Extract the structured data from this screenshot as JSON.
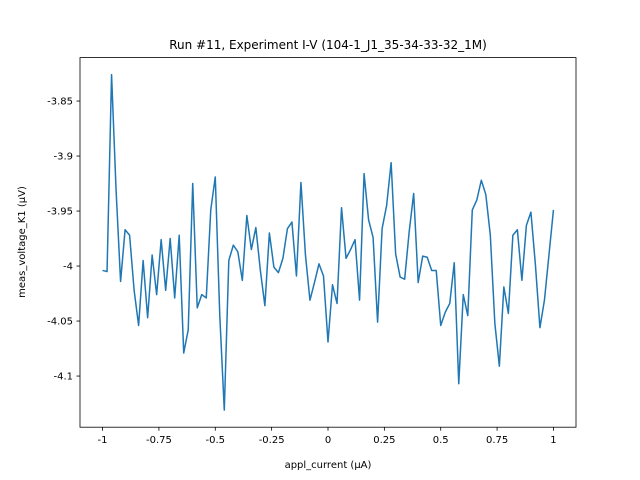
{
  "chart_data": {
    "type": "line",
    "title": "Run #11, Experiment I-V (104-1_J1_35-34-33-32_1M)",
    "x_label": "appl_current (µA)",
    "y_label": "meas_voltage_K1 (µV)",
    "x": [
      -1,
      -0.98,
      -0.96,
      -0.94,
      -0.92,
      -0.9,
      -0.88,
      -0.86,
      -0.84,
      -0.82,
      -0.8,
      -0.78,
      -0.76,
      -0.74,
      -0.72,
      -0.7,
      -0.68,
      -0.66,
      -0.64,
      -0.62,
      -0.6,
      -0.58,
      -0.56,
      -0.54,
      -0.52,
      -0.5,
      -0.48,
      -0.46,
      -0.44,
      -0.42,
      -0.4,
      -0.38,
      -0.36,
      -0.34,
      -0.32,
      -0.3,
      -0.28,
      -0.26,
      -0.24,
      -0.22,
      -0.2,
      -0.18,
      -0.16,
      -0.14,
      -0.12,
      -0.1,
      -0.08,
      -0.06,
      -0.04,
      -0.02,
      0,
      0.02,
      0.04,
      0.06,
      0.08,
      0.1,
      0.12,
      0.14,
      0.16,
      0.18,
      0.2,
      0.22,
      0.24,
      0.26,
      0.28,
      0.3,
      0.32,
      0.34,
      0.36,
      0.38,
      0.4,
      0.42,
      0.44,
      0.46,
      0.48,
      0.5,
      0.52,
      0.54,
      0.56,
      0.58,
      0.6,
      0.62,
      0.64,
      0.66,
      0.68,
      0.7,
      0.72,
      0.74,
      0.76,
      0.78,
      0.8,
      0.82,
      0.84,
      0.86,
      0.88,
      0.9,
      0.92,
      0.94,
      0.96,
      0.98,
      1
    ],
    "series": [
      {
        "name": "meas_voltage_K1",
        "color": "#1f77b4",
        "values": [
          -4.004,
          -4.005,
          -3.826,
          -3.931,
          -4.014,
          -3.967,
          -3.972,
          -4.022,
          -4.054,
          -3.995,
          -4.047,
          -3.99,
          -4.026,
          -3.976,
          -4.022,
          -3.975,
          -4.029,
          -3.972,
          -4.079,
          -4.058,
          -3.925,
          -4.038,
          -4.026,
          -4.029,
          -3.949,
          -3.919,
          -4.045,
          -4.131,
          -3.995,
          -3.981,
          -3.987,
          -4.013,
          -3.954,
          -3.985,
          -3.965,
          -4.004,
          -4.036,
          -3.97,
          -4.001,
          -4.006,
          -3.993,
          -3.966,
          -3.96,
          -4.009,
          -3.924,
          -3.99,
          -4.031,
          -4.015,
          -3.998,
          -4.009,
          -4.069,
          -4.017,
          -4.034,
          -3.947,
          -3.993,
          -3.985,
          -3.976,
          -4.031,
          -3.916,
          -3.958,
          -3.974,
          -4.051,
          -3.966,
          -3.945,
          -3.906,
          -3.989,
          -4.01,
          -4.012,
          -3.969,
          -3.934,
          -4.015,
          -3.991,
          -3.992,
          -4.004,
          -4.004,
          -4.054,
          -4.042,
          -4.034,
          -3.997,
          -4.107,
          -4.026,
          -4.045,
          -3.949,
          -3.94,
          -3.922,
          -3.935,
          -3.972,
          -4.052,
          -4.091,
          -4.019,
          -4.043,
          -3.972,
          -3.967,
          -4.013,
          -3.963,
          -3.951,
          -3.999,
          -4.056,
          -4.031,
          -3.99,
          -3.949
        ]
      }
    ],
    "xlim": [
      -1.1,
      1.1
    ],
    "ylim": [
      -4.1465,
      -3.8105
    ],
    "xticks": [
      -1,
      -0.75,
      -0.5,
      -0.25,
      0,
      0.25,
      0.5,
      0.75,
      1
    ],
    "yticks": [
      -3.85,
      -3.9,
      -3.95,
      -4,
      -4.05,
      -4.1
    ],
    "grid": false
  }
}
